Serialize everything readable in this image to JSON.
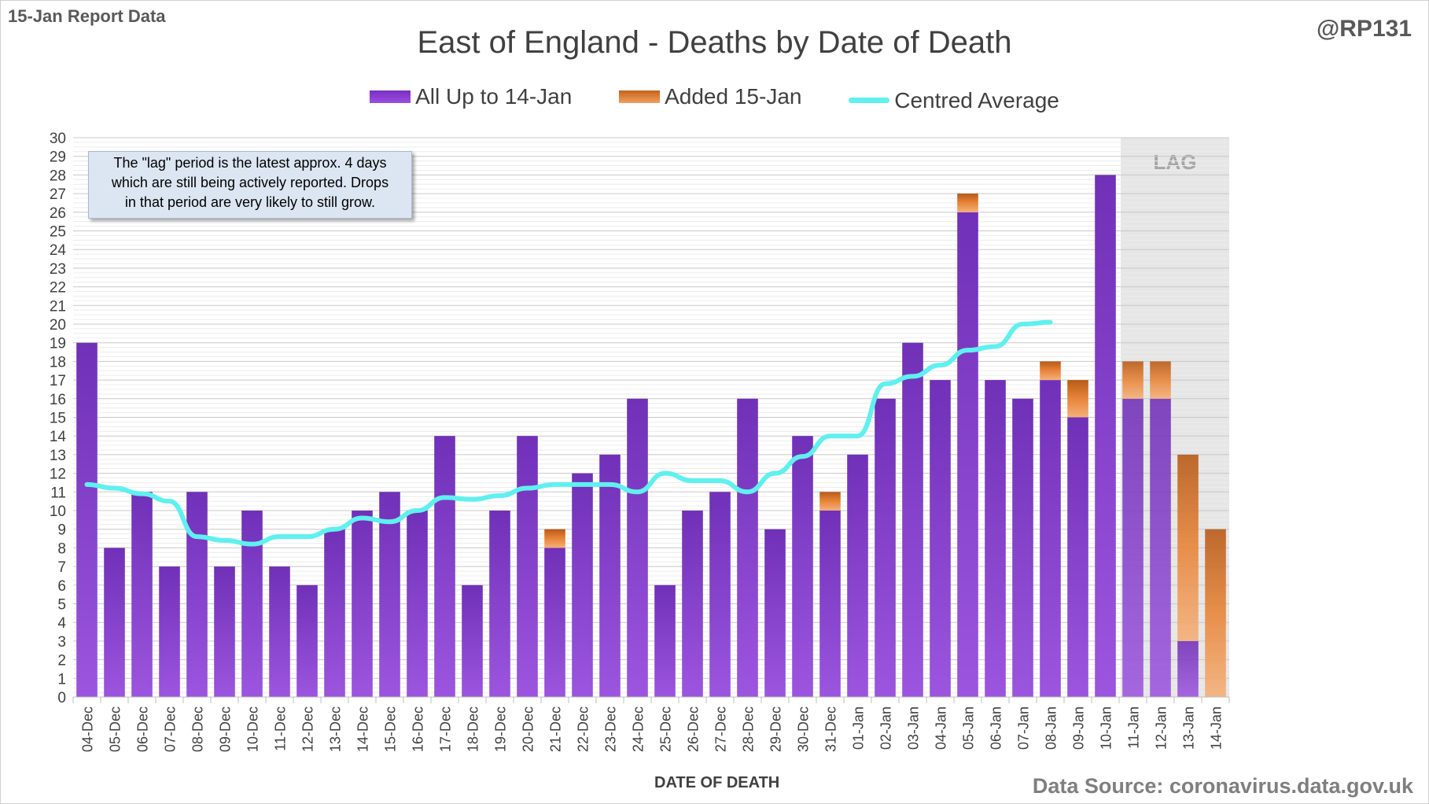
{
  "header": {
    "report_label": "15-Jan Report Data",
    "handle": "@RP131"
  },
  "chart_data": {
    "type": "bar",
    "title": "East of England - Deaths by Date of Death",
    "xlabel": "DATE OF DEATH",
    "ylabel": "",
    "ylim": [
      0,
      30
    ],
    "yticks": [
      0,
      1,
      2,
      3,
      4,
      5,
      6,
      7,
      8,
      9,
      10,
      11,
      12,
      13,
      14,
      15,
      16,
      17,
      18,
      19,
      20,
      21,
      22,
      23,
      24,
      25,
      26,
      27,
      28,
      29,
      30
    ],
    "grid": true,
    "legend_position": "top",
    "stacked": true,
    "categories": [
      "04-Dec",
      "05-Dec",
      "06-Dec",
      "07-Dec",
      "08-Dec",
      "09-Dec",
      "10-Dec",
      "11-Dec",
      "12-Dec",
      "13-Dec",
      "14-Dec",
      "15-Dec",
      "16-Dec",
      "17-Dec",
      "18-Dec",
      "19-Dec",
      "20-Dec",
      "21-Dec",
      "22-Dec",
      "23-Dec",
      "24-Dec",
      "25-Dec",
      "26-Dec",
      "27-Dec",
      "28-Dec",
      "29-Dec",
      "30-Dec",
      "31-Dec",
      "01-Jan",
      "02-Jan",
      "03-Jan",
      "04-Jan",
      "05-Jan",
      "06-Jan",
      "07-Jan",
      "08-Jan",
      "09-Jan",
      "10-Jan",
      "11-Jan",
      "12-Jan",
      "13-Jan",
      "14-Jan"
    ],
    "series": [
      {
        "name": "All Up to 14-Jan",
        "type": "bar",
        "color": "#7a2fc4",
        "values": [
          19,
          8,
          11,
          7,
          11,
          7,
          10,
          7,
          6,
          9,
          10,
          11,
          10,
          14,
          6,
          10,
          14,
          8,
          12,
          13,
          16,
          6,
          10,
          11,
          16,
          9,
          14,
          10,
          13,
          16,
          19,
          17,
          26,
          17,
          16,
          17,
          15,
          28,
          16,
          16,
          3,
          0
        ]
      },
      {
        "name": "Added 15-Jan",
        "type": "bar",
        "color": "#e07a30",
        "values": [
          0,
          0,
          0,
          0,
          0,
          0,
          0,
          0,
          0,
          0,
          0,
          0,
          0,
          0,
          0,
          0,
          0,
          1,
          0,
          0,
          0,
          0,
          0,
          0,
          0,
          0,
          0,
          1,
          0,
          0,
          0,
          0,
          1,
          0,
          0,
          1,
          2,
          0,
          2,
          2,
          10,
          9
        ]
      },
      {
        "name": "Centred Average",
        "type": "line",
        "color": "#5ff0f0",
        "values": [
          11.4,
          11.2,
          10.9,
          10.5,
          8.6,
          8.4,
          8.2,
          8.6,
          8.6,
          9.0,
          9.6,
          9.4,
          10.0,
          10.7,
          10.6,
          10.8,
          11.2,
          11.4,
          11.4,
          11.4,
          11.0,
          12.0,
          11.6,
          11.6,
          11.0,
          12.0,
          12.9,
          14.0,
          14.0,
          16.8,
          17.2,
          17.8,
          18.6,
          18.8,
          20.0,
          20.1,
          null,
          null,
          null,
          null,
          null,
          null
        ]
      }
    ],
    "lag_band": {
      "label": "LAG",
      "from": "11-Jan",
      "to": "14-Jan"
    }
  },
  "note": {
    "lines": [
      "The \"lag\" period is the latest approx. 4 days",
      "which are still being actively reported.  Drops",
      "in that period are very likely to still grow."
    ]
  },
  "footer": {
    "source": "Data Source: coronavirus.data.gov.uk"
  },
  "colors": {
    "purple_bar": "#7a2fc4",
    "orange_bar": "#e07a30",
    "average_line": "#5ff0f0",
    "lag_band": "#e6e6e6"
  }
}
